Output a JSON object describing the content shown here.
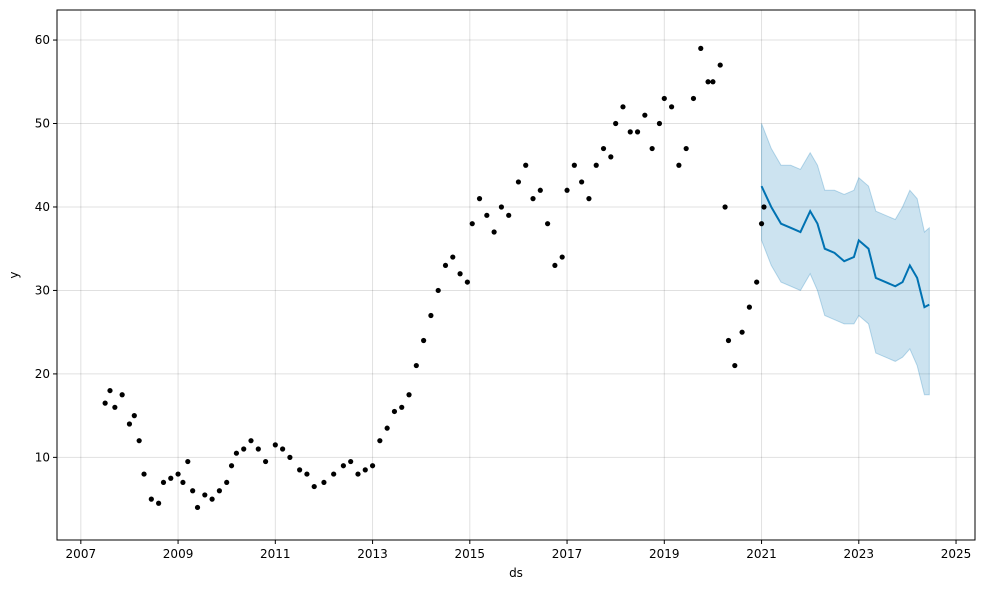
{
  "chart_data": {
    "type": "forecast",
    "xlabel": "ds",
    "ylabel": "y",
    "xlim": [
      2006.51,
      2025.39
    ],
    "xticks": [
      2007,
      2009,
      2011,
      2013,
      2015,
      2017,
      2019,
      2021,
      2023,
      2025
    ],
    "ylim": [
      0.1,
      63.6
    ],
    "yticks": [
      10,
      20,
      30,
      40,
      50,
      60
    ],
    "grid": true,
    "observed": {
      "color": "#000000",
      "x": [
        2007.5,
        2007.6,
        2007.7,
        2007.85,
        2008.0,
        2008.1,
        2008.2,
        2008.3,
        2008.45,
        2008.6,
        2008.7,
        2008.85,
        2009.0,
        2009.1,
        2009.2,
        2009.3,
        2009.4,
        2009.55,
        2009.7,
        2009.85,
        2010.0,
        2010.1,
        2010.2,
        2010.35,
        2010.5,
        2010.65,
        2010.8,
        2011.0,
        2011.15,
        2011.3,
        2011.5,
        2011.65,
        2011.8,
        2012.0,
        2012.2,
        2012.4,
        2012.55,
        2012.7,
        2012.85,
        2013.0,
        2013.15,
        2013.3,
        2013.45,
        2013.6,
        2013.75,
        2013.9,
        2014.05,
        2014.2,
        2014.35,
        2014.5,
        2014.65,
        2014.8,
        2014.95,
        2015.05,
        2015.2,
        2015.35,
        2015.5,
        2015.65,
        2015.8,
        2016.0,
        2016.15,
        2016.3,
        2016.45,
        2016.6,
        2016.75,
        2016.9,
        2017.0,
        2017.15,
        2017.3,
        2017.45,
        2017.6,
        2017.75,
        2017.9,
        2018.0,
        2018.15,
        2018.3,
        2018.45,
        2018.6,
        2018.75,
        2018.9,
        2019.0,
        2019.15,
        2019.3,
        2019.45,
        2019.6,
        2019.75,
        2019.9,
        2020.0,
        2020.15,
        2020.25,
        2020.32,
        2020.45,
        2020.6,
        2020.75,
        2020.9,
        2021.0,
        2021.05
      ],
      "values": [
        16.5,
        18,
        16,
        17.5,
        14,
        15,
        12,
        8,
        5,
        4.5,
        7,
        7.5,
        8,
        7,
        9.5,
        6,
        4,
        5.5,
        5,
        6,
        7,
        9,
        10.5,
        11,
        12,
        11,
        9.5,
        11.5,
        11,
        10,
        8.5,
        8,
        6.5,
        7,
        8,
        9,
        9.5,
        8,
        8.5,
        9,
        12,
        13.5,
        15.5,
        16,
        17.5,
        21,
        24,
        27,
        30,
        33,
        34,
        32,
        31,
        38,
        41,
        39,
        37,
        40,
        39,
        43,
        45,
        41,
        42,
        38,
        33,
        34,
        42,
        45,
        43,
        41,
        45,
        47,
        46,
        50,
        52,
        49,
        49,
        51,
        47,
        50,
        53,
        52,
        45,
        47,
        53,
        59,
        55,
        55,
        57,
        40,
        24,
        21,
        25,
        28,
        31,
        38,
        40
      ]
    },
    "forecast": {
      "color": "#0072b2",
      "band_color": "#0072b2",
      "x": [
        2021.0,
        2021.2,
        2021.4,
        2021.6,
        2021.8,
        2022.0,
        2022.15,
        2022.3,
        2022.5,
        2022.7,
        2022.9,
        2023.0,
        2023.2,
        2023.35,
        2023.55,
        2023.75,
        2023.9,
        2024.05,
        2024.2,
        2024.35,
        2024.45
      ],
      "values": [
        42.5,
        40,
        38,
        37.5,
        37,
        39.5,
        38,
        35,
        34.5,
        33.5,
        34,
        36,
        35,
        31.5,
        31,
        30.5,
        31,
        33,
        31.5,
        28,
        28.3
      ],
      "upper": [
        50,
        47,
        45,
        45,
        44.5,
        46.5,
        45,
        42,
        42,
        41.5,
        42,
        43.5,
        42.5,
        39.5,
        39,
        38.5,
        40,
        42,
        41,
        37,
        37.5
      ],
      "lower": [
        36,
        33,
        31,
        30.5,
        30,
        32,
        30,
        27,
        26.5,
        26,
        26,
        27,
        26,
        22.5,
        22,
        21.5,
        22,
        23,
        21,
        17.5,
        17.5
      ]
    }
  }
}
